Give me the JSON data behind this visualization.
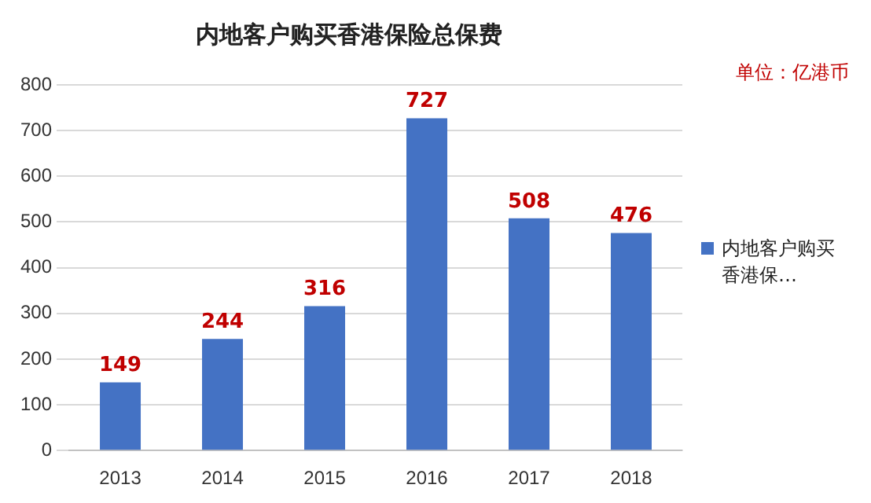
{
  "chart_data": {
    "type": "bar",
    "title": "内地客户购买香港保险总保费",
    "annotations": [
      "单位：亿港币"
    ],
    "categories": [
      "2013",
      "2014",
      "2015",
      "2016",
      "2017",
      "2018"
    ],
    "series": [
      {
        "name": "内地客户购买香港保…",
        "color": "#4472c4",
        "values": [
          149,
          244,
          316,
          727,
          508,
          476
        ]
      }
    ],
    "ylim": [
      0,
      800
    ],
    "yticks": [
      0,
      100,
      200,
      300,
      400,
      500,
      600,
      700,
      800
    ],
    "grid": "y",
    "legend": "right",
    "data_labels": true
  }
}
